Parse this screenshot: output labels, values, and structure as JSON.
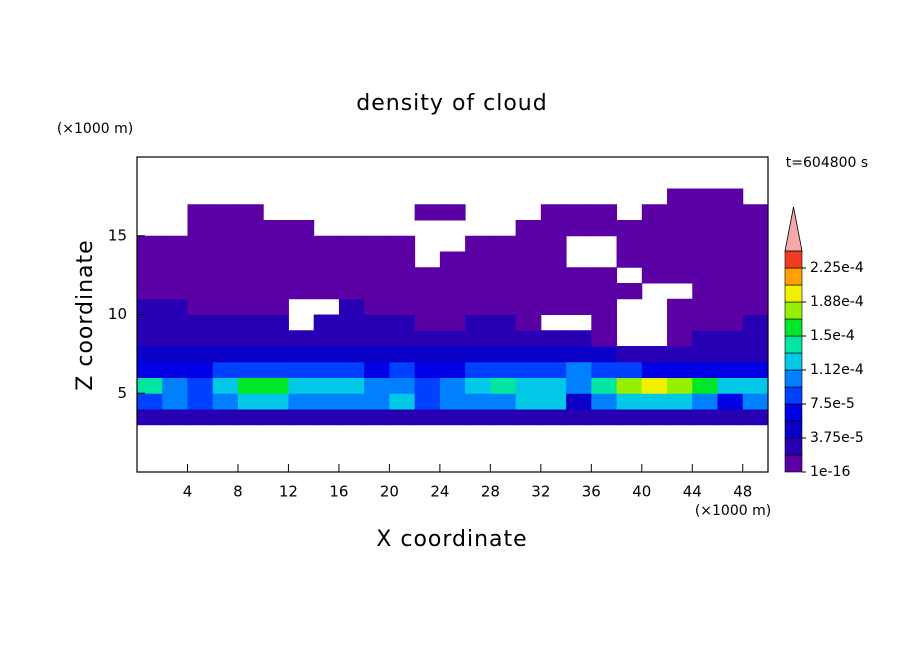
{
  "chart_data": {
    "type": "contour",
    "title": "density of cloud",
    "xlabel": "X coordinate",
    "ylabel": "Z coordinate",
    "xunit": "(×1000 m)",
    "yunit": "(×1000 m)",
    "annotation": "t=604800 s",
    "xlim": [
      0,
      50
    ],
    "ylim": [
      0,
      20
    ],
    "xticks": [
      4,
      8,
      12,
      16,
      20,
      24,
      28,
      32,
      36,
      40,
      44,
      48
    ],
    "yticks": [
      5,
      10,
      15
    ],
    "x": [
      1,
      3,
      5,
      7,
      9,
      11,
      13,
      15,
      17,
      19,
      21,
      23,
      25,
      27,
      29,
      31,
      33,
      35,
      37,
      39,
      41,
      43,
      45,
      47,
      49
    ],
    "y": [
      0.5,
      1.5,
      2.5,
      3.5,
      4.5,
      5.5,
      6.5,
      7.5,
      8.5,
      9.5,
      10.5,
      11.5,
      12.5,
      13.5,
      14.5,
      15.5,
      16.5,
      17.5,
      18.5,
      19.5
    ],
    "z": [
      [
        null,
        null,
        null,
        null,
        null,
        null,
        null,
        null,
        null,
        null,
        null,
        null,
        null,
        null,
        null,
        null,
        null,
        null,
        null,
        null,
        null,
        null,
        null,
        null,
        null
      ],
      [
        null,
        null,
        null,
        null,
        null,
        null,
        null,
        null,
        null,
        null,
        null,
        null,
        null,
        null,
        null,
        null,
        null,
        null,
        null,
        null,
        null,
        null,
        null,
        null,
        null
      ],
      [
        null,
        null,
        null,
        null,
        null,
        null,
        null,
        null,
        null,
        null,
        null,
        null,
        null,
        null,
        null,
        null,
        null,
        null,
        null,
        null,
        null,
        null,
        null,
        null,
        null
      ],
      [
        2e-05,
        2e-05,
        2e-05,
        2e-05,
        2e-05,
        2e-05,
        2e-05,
        2e-05,
        2e-05,
        2e-05,
        2e-05,
        2e-05,
        2e-05,
        2e-05,
        2e-05,
        2e-05,
        2e-05,
        2e-05,
        2e-05,
        2e-05,
        2e-05,
        2e-05,
        2e-05,
        2e-05,
        2e-05
      ],
      [
        8e-05,
        0.00011,
        9e-05,
        0.00011,
        0.00012,
        0.00012,
        0.0001,
        0.00011,
        0.00011,
        0.00011,
        0.00012,
        9e-05,
        0.0001,
        0.00011,
        0.00011,
        0.00012,
        0.00012,
        5e-05,
        0.00011,
        0.00013,
        0.00013,
        0.00012,
        0.00011,
        6e-05,
        0.00011
      ],
      [
        0.00014,
        0.00011,
        9e-05,
        0.00013,
        0.00015,
        0.00015,
        0.00012,
        0.00013,
        0.00013,
        0.0001,
        0.00011,
        9e-05,
        0.0001,
        0.00013,
        0.00014,
        0.00013,
        0.00012,
        0.00011,
        0.00014,
        0.00017,
        0.00019,
        0.00018,
        0.00015,
        0.00012,
        0.00013
      ],
      [
        6e-05,
        7e-05,
        6e-05,
        8e-05,
        9e-05,
        8e-05,
        8e-05,
        9e-05,
        8e-05,
        6e-05,
        8e-05,
        7e-05,
        7e-05,
        8e-05,
        9e-05,
        9e-05,
        8e-05,
        0.00011,
        9e-05,
        8e-05,
        7e-05,
        6e-05,
        7e-05,
        6e-05,
        7e-05
      ],
      [
        4e-05,
        4e-05,
        4e-05,
        4.5e-05,
        5e-05,
        5e-05,
        4.5e-05,
        5e-05,
        4.5e-05,
        4e-05,
        4.5e-05,
        4e-05,
        4e-05,
        4.5e-05,
        5e-05,
        5e-05,
        5e-05,
        5e-05,
        4e-05,
        3e-05,
        2e-05,
        2e-05,
        3e-05,
        3e-05,
        3e-05
      ],
      [
        3e-05,
        3e-05,
        3e-05,
        3e-05,
        3e-05,
        3.5e-05,
        3e-05,
        3e-05,
        3e-05,
        3e-05,
        2.5e-05,
        2.5e-05,
        3e-05,
        3e-05,
        3e-05,
        2.5e-05,
        2e-05,
        2e-05,
        1.5e-05,
        null,
        null,
        1e-05,
        2e-05,
        2e-05,
        2e-05
      ],
      [
        2e-05,
        2.5e-05,
        2e-05,
        2e-05,
        2e-05,
        2.5e-05,
        null,
        2e-05,
        2e-05,
        2e-05,
        2e-05,
        1e-05,
        1e-05,
        2e-05,
        2e-05,
        1e-05,
        null,
        null,
        1e-05,
        null,
        null,
        1e-05,
        1e-05,
        1e-05,
        2e-05
      ],
      [
        2e-05,
        2e-05,
        1e-05,
        1e-05,
        1e-05,
        1e-05,
        null,
        null,
        2e-05,
        1e-05,
        1e-05,
        1e-05,
        1e-05,
        1e-05,
        1e-05,
        1e-05,
        1e-05,
        1e-05,
        1e-05,
        null,
        null,
        1e-05,
        1e-05,
        1e-05,
        1e-05
      ],
      [
        1e-05,
        1e-05,
        1e-05,
        1e-05,
        1e-05,
        1e-05,
        1e-05,
        1e-05,
        1e-05,
        1e-05,
        1e-05,
        1e-05,
        1e-05,
        1e-05,
        1e-05,
        1e-05,
        1e-05,
        1e-05,
        1e-05,
        1e-05,
        null,
        null,
        1e-05,
        1e-05,
        1e-05
      ],
      [
        1e-05,
        1e-05,
        1e-05,
        1e-05,
        1e-05,
        1e-05,
        1e-05,
        1e-05,
        1e-05,
        1e-05,
        1e-05,
        1e-05,
        1e-05,
        1e-05,
        1e-05,
        1e-05,
        1e-05,
        1e-05,
        1e-05,
        null,
        1e-05,
        1e-05,
        1e-05,
        1e-05,
        1e-05
      ],
      [
        1e-05,
        1e-05,
        1e-05,
        1e-05,
        1e-05,
        1e-05,
        1e-05,
        1e-05,
        1e-05,
        1e-05,
        1e-05,
        null,
        1e-05,
        1e-05,
        1e-05,
        1e-05,
        1e-05,
        null,
        null,
        1e-05,
        1e-05,
        1e-05,
        1e-05,
        1e-05,
        1e-05
      ],
      [
        1e-05,
        1e-05,
        1e-05,
        1e-05,
        1e-05,
        1e-05,
        1e-05,
        1e-05,
        1e-05,
        1e-05,
        1e-05,
        null,
        null,
        1e-05,
        1e-05,
        1e-05,
        1e-05,
        null,
        null,
        1e-05,
        1e-05,
        1e-05,
        1e-05,
        1e-05,
        1e-05
      ],
      [
        null,
        null,
        1e-05,
        1e-05,
        1e-05,
        1e-05,
        1e-05,
        null,
        null,
        null,
        null,
        null,
        null,
        null,
        null,
        1e-05,
        1e-05,
        1e-05,
        1e-05,
        1e-05,
        1e-05,
        1e-05,
        1e-05,
        1e-05,
        1e-05
      ],
      [
        null,
        null,
        1e-05,
        1e-05,
        1e-05,
        null,
        null,
        null,
        null,
        null,
        null,
        1e-05,
        1e-05,
        null,
        null,
        null,
        1e-05,
        1e-05,
        1e-05,
        null,
        1e-05,
        1e-05,
        1e-05,
        1e-05,
        1e-05
      ],
      [
        null,
        null,
        null,
        null,
        null,
        null,
        null,
        null,
        null,
        null,
        null,
        null,
        null,
        null,
        null,
        null,
        null,
        null,
        null,
        null,
        null,
        1e-05,
        1e-05,
        1e-05,
        null
      ],
      [
        null,
        null,
        null,
        null,
        null,
        null,
        null,
        null,
        null,
        null,
        null,
        null,
        null,
        null,
        null,
        null,
        null,
        null,
        null,
        null,
        null,
        null,
        null,
        null,
        null
      ],
      [
        null,
        null,
        null,
        null,
        null,
        null,
        null,
        null,
        null,
        null,
        null,
        null,
        null,
        null,
        null,
        null,
        null,
        null,
        null,
        null,
        null,
        null,
        null,
        null,
        null
      ]
    ],
    "levels": [
      1e-16,
      1.875e-05,
      3.75e-05,
      5.625e-05,
      7.5e-05,
      9.375e-05,
      0.0001125,
      0.00013125,
      0.00015,
      0.00016875,
      0.0001875,
      0.00020625,
      0.000225,
      0.00024375
    ],
    "colors": [
      "#5a00a5",
      "#2800b4",
      "#0a00c8",
      "#0000e6",
      "#0040ff",
      "#0080ff",
      "#00c8e6",
      "#00e6a0",
      "#00e628",
      "#96f000",
      "#f0f000",
      "#ffa000",
      "#f03c1e"
    ],
    "extend_color": "#f4a8a8",
    "colorbar_ticks": [
      {
        "value": 1e-16,
        "label": "1e-16"
      },
      {
        "value": 3.75e-05,
        "label": "3.75e-5"
      },
      {
        "value": 7.5e-05,
        "label": "7.5e-5"
      },
      {
        "value": 0.0001125,
        "label": "1.12e-4"
      },
      {
        "value": 0.00015,
        "label": "1.5e-4"
      },
      {
        "value": 0.0001875,
        "label": "1.88e-4"
      },
      {
        "value": 0.000225,
        "label": "2.25e-4"
      }
    ]
  }
}
